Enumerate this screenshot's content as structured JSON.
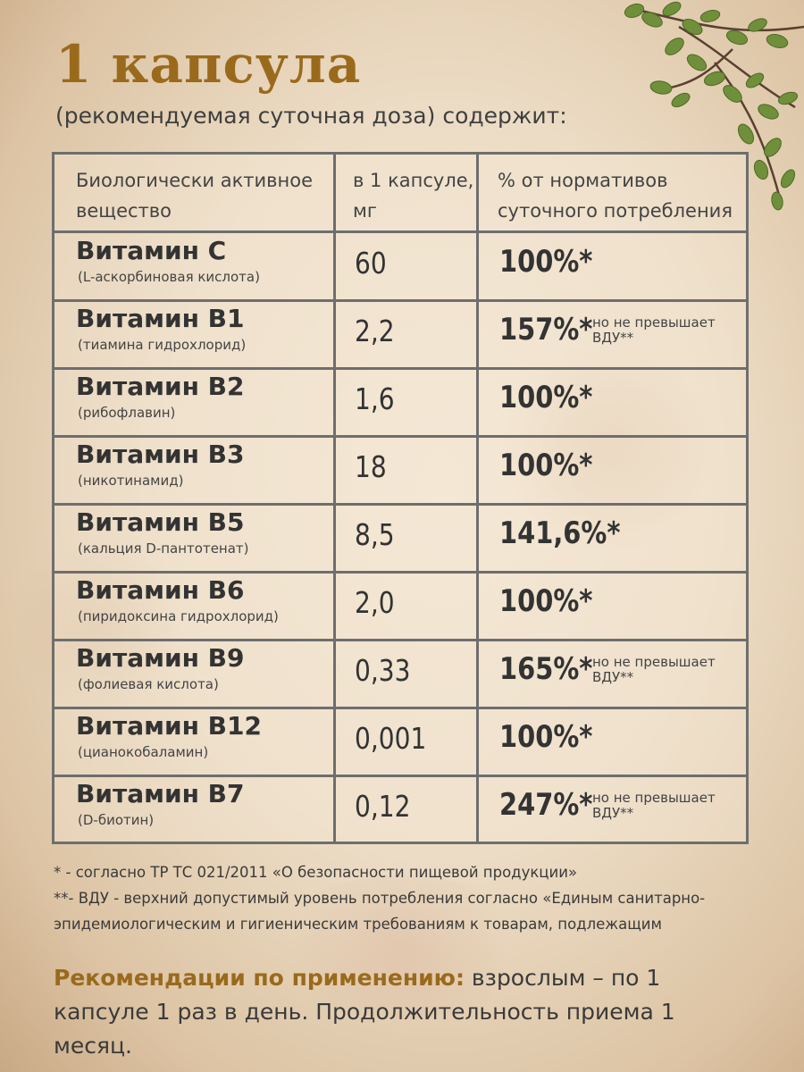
{
  "title": "1 капсула",
  "subtitle": "(рекомендуемая суточная доза) содержит:",
  "table": {
    "headers": [
      "Биологически активное\nвещество",
      "в 1 капсуле,\nмг",
      "% от нормативов\nсуточного потребления"
    ],
    "rows": [
      {
        "name": "Витамин С",
        "sub": "(L-аскорбиновая кислота)",
        "dose": "60",
        "pct": "100%*",
        "note": ""
      },
      {
        "name": "Витамин В1",
        "sub": "(тиамина гидрохлорид)",
        "dose": "2,2",
        "pct": "157%*",
        "note": "но не превышает ВДУ**"
      },
      {
        "name": "Витамин В2",
        "sub": "(рибофлавин)",
        "dose": "1,6",
        "pct": "100%*",
        "note": ""
      },
      {
        "name": "Витамин В3",
        "sub": "(никотинамид)",
        "dose": "18",
        "pct": "100%*",
        "note": ""
      },
      {
        "name": "Витамин В5",
        "sub": "(кальция D-пантотенат)",
        "dose": "8,5",
        "pct": "141,6%*",
        "note": ""
      },
      {
        "name": "Витамин В6",
        "sub": "(пиридоксина гидрохлорид)",
        "dose": "2,0",
        "pct": "100%*",
        "note": ""
      },
      {
        "name": "Витамин В9",
        "sub": "(фолиевая кислота)",
        "dose": "0,33",
        "pct": "165%*",
        "note": "но не превышает ВДУ**"
      },
      {
        "name": "Витамин В12",
        "sub": "(цианокобаламин)",
        "dose": "0,001",
        "pct": "100%*",
        "note": ""
      },
      {
        "name": "Витамин В7",
        "sub": "(D-биотин)",
        "dose": "0,12",
        "pct": "247%*",
        "note": "но не превышает ВДУ**"
      }
    ]
  },
  "footnotes": {
    "f1": "* - согласно ТР ТС 021/2011 «О безопасности пищевой продукции»",
    "f2": "**- ВДУ - верхний допустимый уровень потребления согласно «Единым санитарно-",
    "f3": "эпидемиологическим и гигиеническим требованиям к товарам, подлежащим"
  },
  "recommendation": {
    "label": "Рекомендации по применению:",
    "text": " взрослым – по 1 капсуле 1 раз в день. Продолжительность приема 1 месяц."
  },
  "colors": {
    "accent": "#9a6a1c",
    "border": "#6e6e6e",
    "leaf": "#6f8f3a"
  },
  "decoration_icon": "thyme-branch-icon"
}
